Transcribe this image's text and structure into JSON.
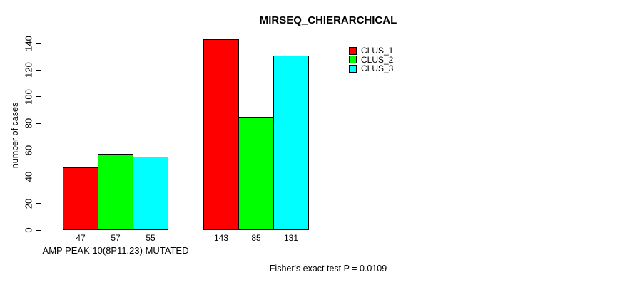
{
  "chart_data": {
    "type": "bar",
    "title": "MIRSEQ_CHIERARCHICAL",
    "ylabel": "number of cases",
    "xlabel": "",
    "ylim": [
      0,
      140
    ],
    "yticks": [
      0,
      20,
      40,
      60,
      80,
      100,
      120,
      140
    ],
    "categories": [
      "AMP PEAK 10(8P11.23) MUTATED",
      ""
    ],
    "series": [
      {
        "name": "CLUS_1",
        "color": "#FF0000",
        "values": [
          47,
          143
        ]
      },
      {
        "name": "CLUS_2",
        "color": "#00FF00",
        "values": [
          57,
          85
        ]
      },
      {
        "name": "CLUS_3",
        "color": "#00FFFF",
        "values": [
          55,
          131
        ]
      }
    ],
    "bar_value_labels": [
      [
        47,
        57,
        55
      ],
      [
        143,
        85,
        131
      ]
    ],
    "legend_position": "top-right",
    "grid": false,
    "axis_color": "#000000",
    "background_color": "#FFFFFF",
    "footer": "Fisher's exact test P = 0.0109"
  }
}
